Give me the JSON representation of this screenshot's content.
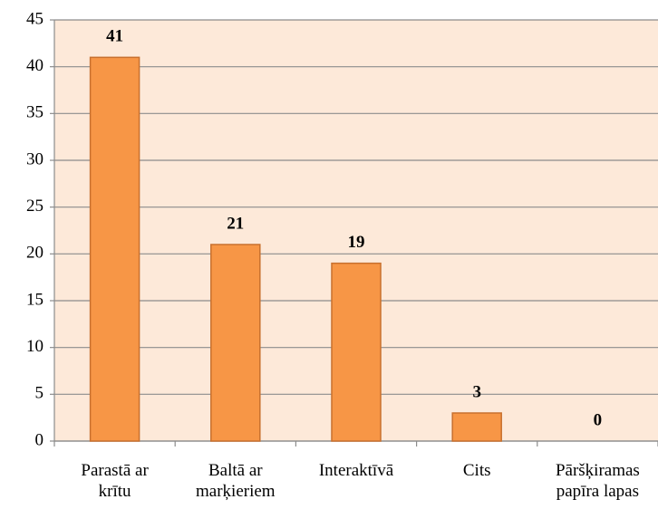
{
  "chart_data": {
    "type": "bar",
    "categories": [
      "Parastā ar\nkrītu",
      "Baltā ar\nmarķieriem",
      "Interaktīvā",
      "Cits",
      "Pāršķiramas\npapīra lapas"
    ],
    "values": [
      41,
      21,
      19,
      3,
      0
    ],
    "color": "#f79646",
    "ylim": [
      0,
      45
    ],
    "yticks": [
      0,
      5,
      10,
      15,
      20,
      25,
      30,
      35,
      40,
      45
    ],
    "grid": true
  }
}
